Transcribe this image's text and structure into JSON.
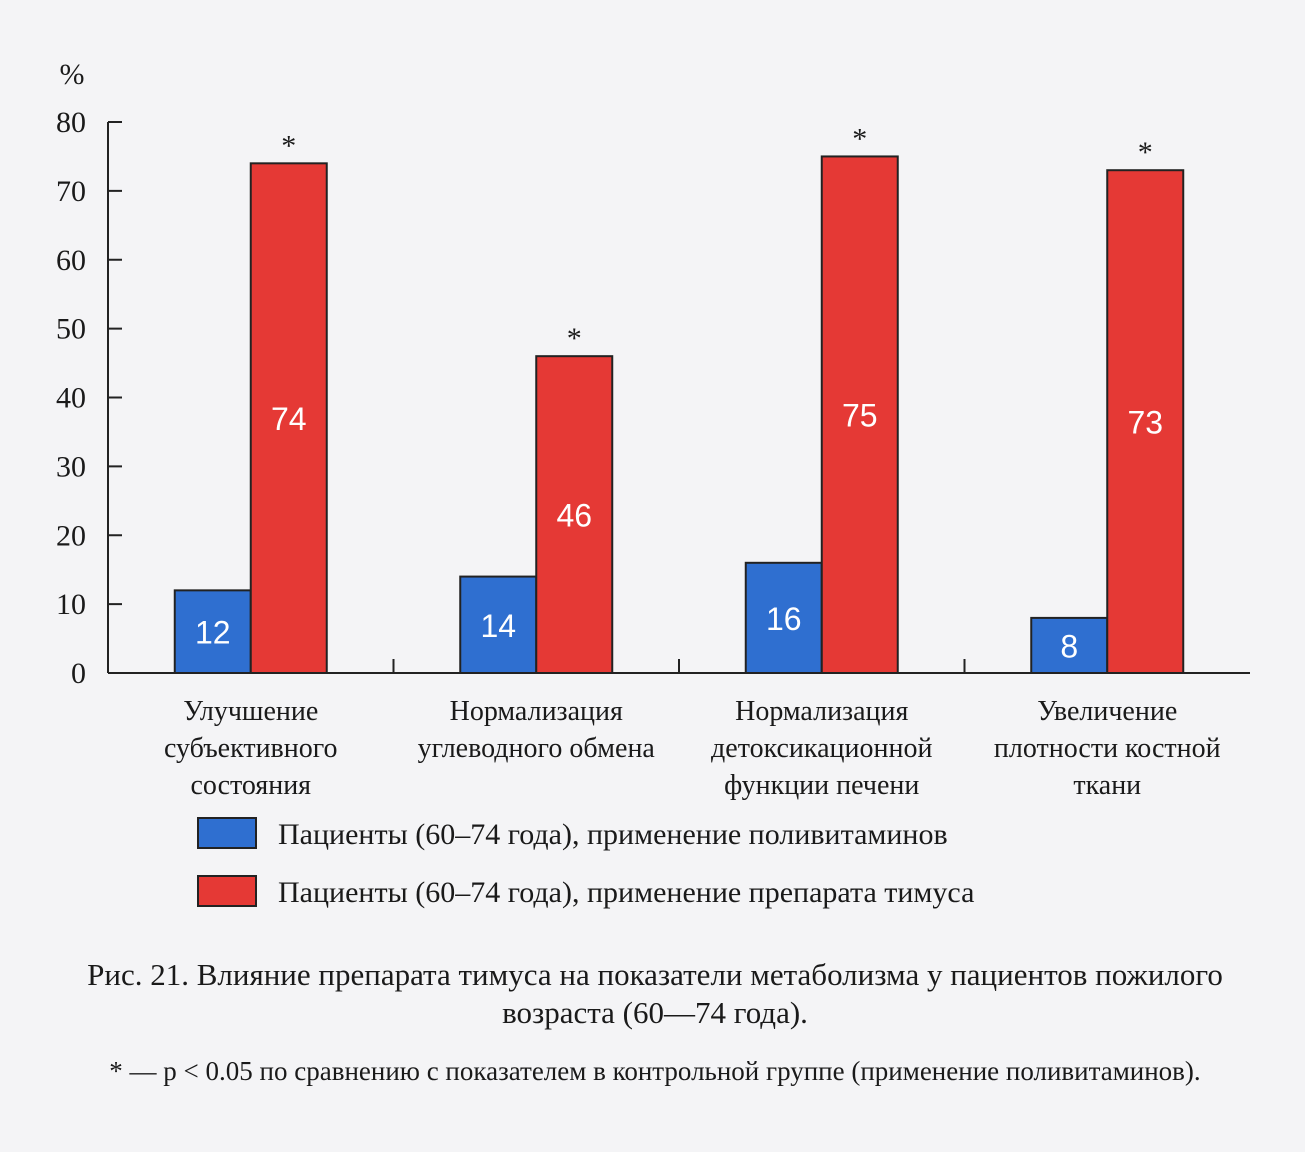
{
  "chart_data": {
    "type": "bar",
    "ylabel": "%",
    "ylim": [
      0,
      80
    ],
    "yticks": [
      0,
      10,
      20,
      30,
      40,
      50,
      60,
      70,
      80
    ],
    "categories": [
      [
        "Улучшение",
        "субъективного",
        "состояния"
      ],
      [
        "Нормализация",
        "углеводного обмена"
      ],
      [
        "Нормализация",
        "детоксикационной",
        "функции печени"
      ],
      [
        "Увеличение",
        "плотности костной",
        "ткани"
      ]
    ],
    "series": [
      {
        "name": "Пациенты (60–74 года), применение поливитаминов",
        "color": "#2f6fd0",
        "values": [
          12,
          14,
          16,
          8
        ],
        "labels": [
          "12",
          "14",
          "16",
          "8"
        ]
      },
      {
        "name": "Пациенты (60–74 года), применение препарата тимуса",
        "color": "#e53935",
        "values": [
          74,
          46,
          75,
          73
        ],
        "labels": [
          "74",
          "46",
          "75",
          "73"
        ]
      }
    ],
    "significance_marker": "*",
    "legend_position": "bottom",
    "grid": false
  },
  "caption": {
    "main": "Рис. 21. Влияние препарата тимуса на показатели метаболизма у пациентов пожилого возраста (60—74 года).",
    "note": "* — p < 0.05 по сравнению с показателем в контрольной группе (применение поливитаминов)."
  }
}
